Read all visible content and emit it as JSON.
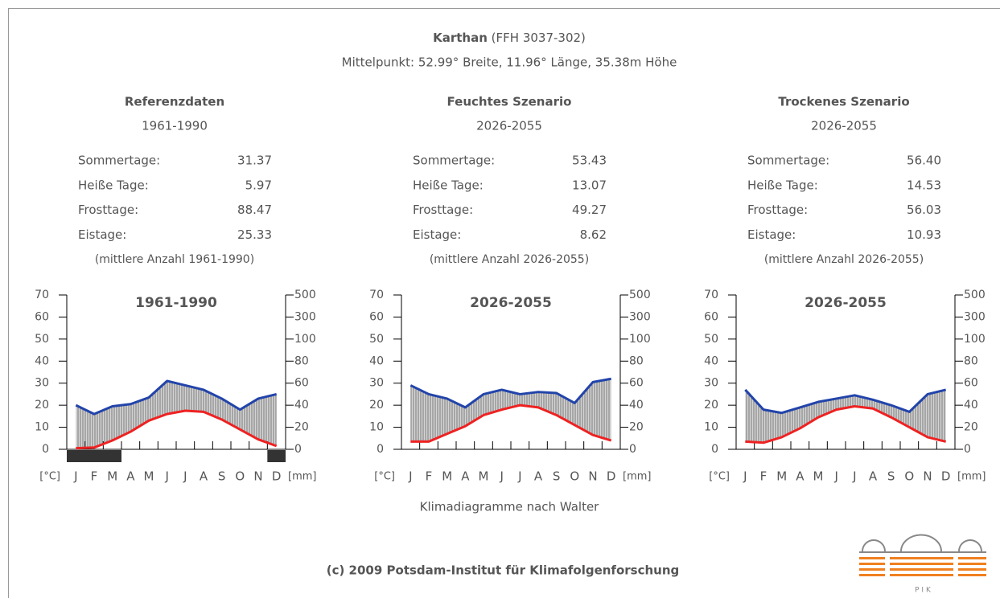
{
  "header": {
    "name": "Karthan",
    "code": " (FFH 3037-302)",
    "subtitle": "Mittelpunkt: 52.99° Breite, 11.96° Länge, 35.38m Höhe"
  },
  "panels": [
    {
      "title": "Referenzdaten",
      "period": "1961-1990",
      "rows": [
        [
          "Sommertage:",
          "31.37"
        ],
        [
          "Heiße Tage:",
          "5.97"
        ],
        [
          "Frosttage:",
          "88.47"
        ],
        [
          "Eistage:",
          "25.33"
        ]
      ],
      "note": "(mittlere Anzahl 1961-1990)"
    },
    {
      "title": "Feuchtes Szenario",
      "period": "2026-2055",
      "rows": [
        [
          "Sommertage:",
          "53.43"
        ],
        [
          "Heiße Tage:",
          "13.07"
        ],
        [
          "Frosttage:",
          "49.27"
        ],
        [
          "Eistage:",
          "8.62"
        ]
      ],
      "note": "(mittlere Anzahl 2026-2055)"
    },
    {
      "title": "Trockenes Szenario",
      "period": "2026-2055",
      "rows": [
        [
          "Sommertage:",
          "56.40"
        ],
        [
          "Heiße Tage:",
          "14.53"
        ],
        [
          "Frosttage:",
          "56.03"
        ],
        [
          "Eistage:",
          "10.93"
        ]
      ],
      "note": "(mittlere Anzahl 2026-2055)"
    }
  ],
  "chart_data": [
    {
      "type": "walter",
      "title": "1961-1990",
      "x_label_left": "[°C]",
      "x_label_right": "[mm]",
      "categories": [
        "J",
        "F",
        "M",
        "A",
        "M",
        "J",
        "J",
        "A",
        "S",
        "O",
        "N",
        "D"
      ],
      "ylim": [
        0,
        70
      ],
      "yticks": [
        0,
        10,
        20,
        30,
        40,
        50,
        60,
        70
      ],
      "y2lim": [
        0,
        500
      ],
      "y2ticks": [
        0,
        20,
        40,
        60,
        80,
        100,
        300,
        500
      ],
      "series": [
        {
          "color": "#2244aa",
          "axis": "y2",
          "values": [
            40,
            32,
            39,
            41,
            47,
            62,
            58,
            54,
            46,
            36,
            46,
            50
          ]
        },
        {
          "color": "#ee2222",
          "values": [
            0.5,
            0.8,
            4,
            8,
            13,
            16,
            17.5,
            17,
            13.5,
            9,
            4.5,
            1.5
          ]
        }
      ],
      "frost_bars": [
        [
          0,
          3
        ],
        [
          11,
          12
        ]
      ],
      "frost_color": "#333333"
    },
    {
      "type": "walter",
      "title": "2026-2055",
      "x_label_left": "[°C]",
      "x_label_right": "[mm]",
      "categories": [
        "J",
        "F",
        "M",
        "A",
        "M",
        "J",
        "J",
        "A",
        "S",
        "O",
        "N",
        "D"
      ],
      "ylim": [
        0,
        70
      ],
      "yticks": [
        0,
        10,
        20,
        30,
        40,
        50,
        60,
        70
      ],
      "y2lim": [
        0,
        500
      ],
      "y2ticks": [
        0,
        20,
        40,
        60,
        80,
        100,
        300,
        500
      ],
      "series": [
        {
          "color": "#2244aa",
          "axis": "y2",
          "values": [
            58,
            50,
            46,
            38,
            50,
            54,
            50,
            52,
            51,
            42,
            61,
            64
          ]
        },
        {
          "color": "#ee2222",
          "values": [
            3.5,
            3.5,
            7,
            10.5,
            15.5,
            18,
            20,
            19,
            15.5,
            11,
            6.5,
            4
          ]
        }
      ],
      "frost_bars": [],
      "frost_color": "#333333"
    },
    {
      "type": "walter",
      "title": "2026-2055",
      "x_label_left": "[°C]",
      "x_label_right": "[mm]",
      "categories": [
        "J",
        "F",
        "M",
        "A",
        "M",
        "J",
        "J",
        "A",
        "S",
        "O",
        "N",
        "D"
      ],
      "ylim": [
        0,
        70
      ],
      "yticks": [
        0,
        10,
        20,
        30,
        40,
        50,
        60,
        70
      ],
      "y2lim": [
        0,
        500
      ],
      "y2ticks": [
        0,
        20,
        40,
        60,
        80,
        100,
        300,
        500
      ],
      "series": [
        {
          "color": "#2244aa",
          "axis": "y2",
          "values": [
            54,
            36,
            33,
            38,
            43,
            46,
            49,
            45,
            40,
            34,
            50,
            54
          ]
        },
        {
          "color": "#ee2222",
          "values": [
            3.5,
            3,
            5.5,
            9.5,
            14.5,
            18,
            19.5,
            18.5,
            14.5,
            10,
            5.5,
            3.5
          ]
        }
      ],
      "frost_bars": [],
      "frost_color": "#333333"
    }
  ],
  "caption": "Klimadiagramme nach Walter",
  "footer": "(c) 2009 Potsdam-Institut für Klimafolgenforschung",
  "logo_text": "P I K"
}
